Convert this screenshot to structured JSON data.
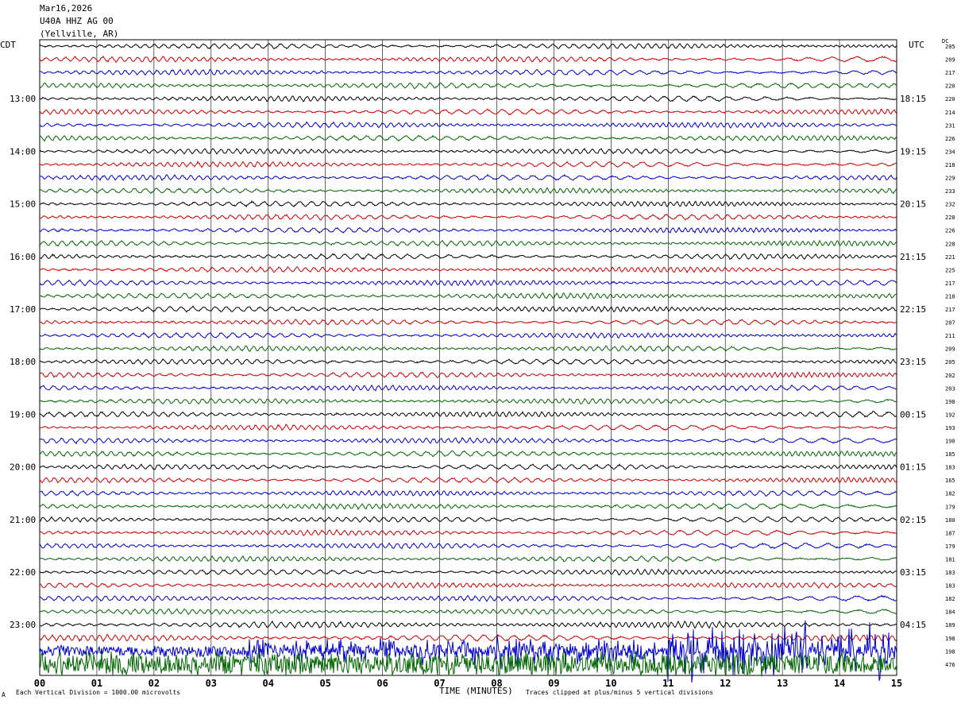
{
  "header": {
    "date": "Mar16,2026",
    "station": "U40A HHZ AG 00",
    "location": "(Yellville, AR)"
  },
  "left_tz": "CDT",
  "right_tz": "UTC",
  "dc_label": "DC",
  "footer": {
    "scale": "Each Vertical Division = 1000.00 microvolts",
    "xlabel": "TIME (MINUTES)",
    "clip": "Traces clipped at plus/minus 5 vertical divisions",
    "corner_mark": "A"
  },
  "colors": {
    "trace_cycle": [
      "#000000",
      "#cc0000",
      "#0000cc",
      "#006600"
    ],
    "grid": "#000000",
    "background": "#ffffff"
  },
  "chart_data": {
    "type": "line",
    "title": "U40A HHZ AG 00",
    "xlabel": "TIME (MINUTES)",
    "xlim": [
      0,
      15
    ],
    "x_ticks": [
      "00",
      "01",
      "02",
      "03",
      "04",
      "05",
      "06",
      "07",
      "08",
      "09",
      "10",
      "11",
      "12",
      "13",
      "14",
      "15"
    ],
    "rows_per_hour": 4,
    "left_hour_labels": [
      {
        "row": 4,
        "label": "13:00"
      },
      {
        "row": 8,
        "label": "14:00"
      },
      {
        "row": 12,
        "label": "15:00"
      },
      {
        "row": 16,
        "label": "16:00"
      },
      {
        "row": 20,
        "label": "17:00"
      },
      {
        "row": 24,
        "label": "18:00"
      },
      {
        "row": 28,
        "label": "19:00"
      },
      {
        "row": 32,
        "label": "20:00"
      },
      {
        "row": 36,
        "label": "21:00"
      },
      {
        "row": 40,
        "label": "22:00"
      },
      {
        "row": 44,
        "label": "23:00"
      }
    ],
    "right_hour_labels": [
      {
        "row": 4,
        "label": "18:15"
      },
      {
        "row": 8,
        "label": "19:15"
      },
      {
        "row": 12,
        "label": "20:15"
      },
      {
        "row": 16,
        "label": "21:15"
      },
      {
        "row": 20,
        "label": "22:15"
      },
      {
        "row": 24,
        "label": "23:15"
      },
      {
        "row": 28,
        "label": "00:15"
      },
      {
        "row": 32,
        "label": "01:15"
      },
      {
        "row": 36,
        "label": "02:15"
      },
      {
        "row": 40,
        "label": "03:15"
      },
      {
        "row": 44,
        "label": "04:15"
      }
    ],
    "dc_offsets": [
      "205",
      "209",
      "217",
      "220",
      "220",
      "214",
      "231",
      "226",
      "234",
      "218",
      "229",
      "233",
      "232",
      "228",
      "226",
      "228",
      "221",
      "225",
      "217",
      "218",
      "217",
      "207",
      "211",
      "209",
      "205",
      "202",
      "203",
      "198",
      "192",
      "193",
      "190",
      "185",
      "183",
      "165",
      "182",
      "179",
      "180",
      "187",
      "179",
      "181",
      "183",
      "183",
      "182",
      "184",
      "189",
      "198",
      "198",
      "476"
    ]
  }
}
